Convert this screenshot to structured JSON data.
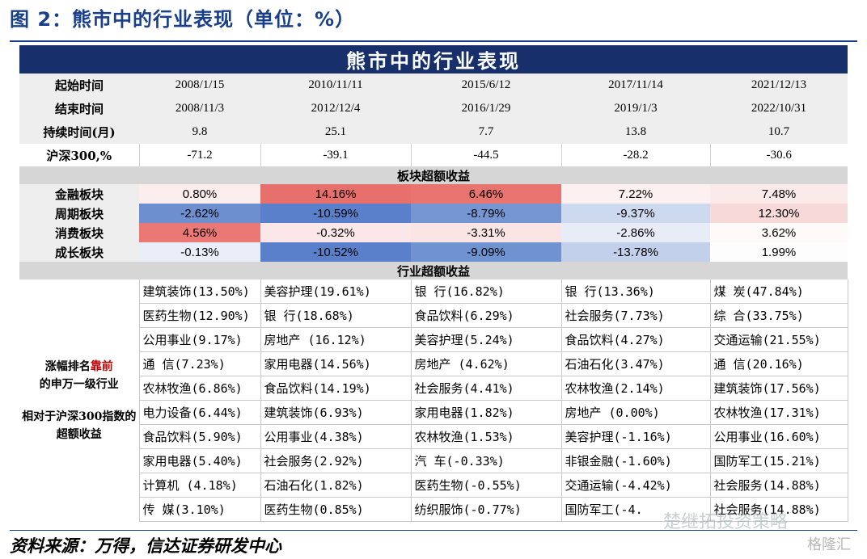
{
  "figure_title": "图 2：熊市中的行业表现（单位：%）",
  "table_title": "熊市中的行业表现",
  "row_labels": {
    "start": "起始时间",
    "end": "结束时间",
    "duration": "持续时间(月)",
    "hs300": "沪深300,%"
  },
  "periods": [
    {
      "start": "2008/1/15",
      "end": "2008/11/3",
      "duration": "9.8",
      "hs300": "-71.2"
    },
    {
      "start": "2010/11/11",
      "end": "2012/12/4",
      "duration": "25.1",
      "hs300": "-39.1"
    },
    {
      "start": "2015/6/12",
      "end": "2016/1/29",
      "duration": "7.7",
      "hs300": "-44.5"
    },
    {
      "start": "2017/11/14",
      "end": "2019/1/3",
      "duration": "13.8",
      "hs300": "-28.2"
    },
    {
      "start": "2021/12/13",
      "end": "2022/10/31",
      "duration": "10.7",
      "hs300": "-30.6"
    }
  ],
  "sector_header": "板块超额收益",
  "sectors": [
    {
      "label": "金融板块",
      "values": [
        "0.80%",
        "14.16%",
        "6.46%",
        "7.22%",
        "7.48%"
      ],
      "colors": [
        "#fdeeee",
        "#e8706c",
        "#e8736f",
        "#fdf0f0",
        "#fbeaea"
      ]
    },
    {
      "label": "周期板块",
      "values": [
        "-2.62%",
        "-10.59%",
        "-8.79%",
        "-9.37%",
        "12.30%"
      ],
      "colors": [
        "#6d8fd0",
        "#5a80cc",
        "#7596d2",
        "#cdd9ee",
        "#f7d9d9"
      ]
    },
    {
      "label": "消费板块",
      "values": [
        "4.56%",
        "-0.32%",
        "-3.31%",
        "-2.86%",
        "3.62%"
      ],
      "colors": [
        "#ea7874",
        "#fbe7e7",
        "#fbe4e4",
        "#e7ecf7",
        "#fefafa"
      ]
    },
    {
      "label": "成长板块",
      "values": [
        "-0.13%",
        "-10.52%",
        "-9.09%",
        "-13.78%",
        "1.99%"
      ],
      "colors": [
        "#e9eef8",
        "#5a80cc",
        "#6f92d1",
        "#c2d0eb",
        "#fdfdfe"
      ]
    }
  ],
  "industry_header": "行业超额收益",
  "industry_note": {
    "line1_pre": "涨幅排名",
    "line1_highlight": "靠前",
    "line2": "的申万一级行业",
    "line3": "相对于沪深300指数的超额收益"
  },
  "industries": [
    [
      "建筑装饰(13.50%)",
      "美容护理(19.61%)",
      "银    行(16.82%)",
      "银    行(13.36%)",
      "煤    炭(47.84%)"
    ],
    [
      "医药生物(12.90%)",
      "银    行(18.68%)",
      "食品饮料(6.29%)",
      "社会服务(7.73%)",
      "综    合(33.75%)"
    ],
    [
      "公用事业(9.17%)",
      "房地产  (16.12%)",
      "美容护理(5.24%)",
      "食品饮料(4.27%)",
      "交通运输(21.55%)"
    ],
    [
      "通    信(7.23%)",
      "家用电器(14.56%)",
      "房地产  (4.62%)",
      "石油石化(3.47%)",
      "通    信(20.16%)"
    ],
    [
      "农林牧渔(6.86%)",
      "食品饮料(14.19%)",
      "社会服务(4.41%)",
      "农林牧渔(2.14%)",
      "建筑装饰(17.56%)"
    ],
    [
      "电力设备(6.44%)",
      "建筑装饰(6.93%)",
      "家用电器(1.82%)",
      "房地产  (0.00%)",
      "农林牧渔(17.31%)"
    ],
    [
      "食品饮料(5.90%)",
      "公用事业(4.38%)",
      "农林牧渔(1.53%)",
      "美容护理(-1.16%)",
      "公用事业(16.60%)"
    ],
    [
      "家用电器(5.40%)",
      "社会服务(2.92%)",
      "汽    车(-0.33%)",
      "非银金融(-1.60%)",
      "国防军工(15.21%)"
    ],
    [
      "计算机  (4.18%)",
      "石油石化(1.82%)",
      "医药生物(-0.55%)",
      "交通运输(-4.42%)",
      "社会服务(14.88%)"
    ],
    [
      "传    媒(3.10%)",
      "医药生物(0.85%)",
      "纺织服饰(-0.77%)",
      "国防军工(-4.",
      "社会服务(14.88%)"
    ]
  ],
  "source": "资料来源：万得，信达证券研发中心",
  "watermark": "楚继拓投资策略",
  "watermark2": "格隆汇"
}
